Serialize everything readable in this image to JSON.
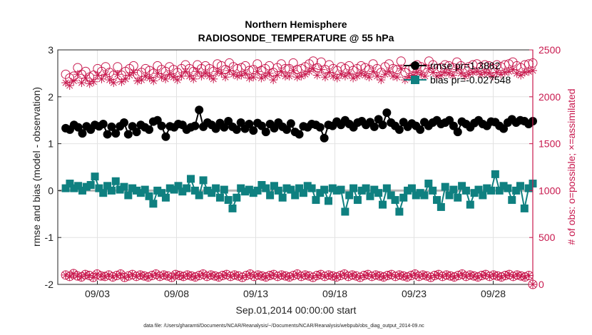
{
  "chart_data": {
    "type": "line",
    "title": "Northern Hemisphere",
    "subtitle": "RADIOSONDE_TEMPERATURE @ 55 hPa",
    "xlabel": "Sep.01,2014 00:00:00 start",
    "ylabel_left": "rmse and bias (model - observation)",
    "ylabel_right": "# of obs: o=possible; ×=assimilated",
    "footnote": "data file: /Users/gharamti/Documents/NCAR/Reanalysis/~/Documents/NCAR/Reanalysis/webpub/obs_diag_output_2014-09.nc",
    "x_range": [
      0.5,
      30.5
    ],
    "ylim_left": [
      -2,
      3
    ],
    "ylim_right": [
      0,
      2500
    ],
    "grid": true,
    "legend_position": "top-right",
    "x_ticks": [
      {
        "value": 3,
        "label": "09/03"
      },
      {
        "value": 8,
        "label": "09/08"
      },
      {
        "value": 13,
        "label": "09/13"
      },
      {
        "value": 18,
        "label": "09/18"
      },
      {
        "value": 23,
        "label": "09/23"
      },
      {
        "value": 28,
        "label": "09/28"
      }
    ],
    "y_ticks_left": [
      {
        "value": -2,
        "label": "-2"
      },
      {
        "value": -1,
        "label": "-1"
      },
      {
        "value": 0,
        "label": "0"
      },
      {
        "value": 1,
        "label": "1"
      },
      {
        "value": 2,
        "label": "2"
      },
      {
        "value": 3,
        "label": "3"
      }
    ],
    "y_ticks_right": [
      {
        "value": 0,
        "label": "0"
      },
      {
        "value": 500,
        "label": "500"
      },
      {
        "value": 1000,
        "label": "1000"
      },
      {
        "value": 1500,
        "label": "1500"
      },
      {
        "value": 2000,
        "label": "2000"
      },
      {
        "value": 2500,
        "label": "2500"
      }
    ],
    "colors": {
      "rmse": "#000000",
      "bias": "#0f8080",
      "obs": "#c8194e",
      "zero_line": "#b4b4b4",
      "grid": "#e2e2e2"
    },
    "series": [
      {
        "name": "rmse pr=1.3882",
        "axis": "left",
        "values": [
          1.33,
          1.3,
          1.4,
          1.35,
          1.22,
          1.37,
          1.3,
          1.4,
          1.37,
          1.42,
          1.2,
          1.36,
          1.22,
          1.37,
          1.45,
          1.2,
          1.37,
          1.25,
          1.4,
          1.35,
          1.3,
          1.47,
          1.5,
          1.38,
          1.15,
          1.37,
          1.35,
          1.42,
          1.4,
          1.3,
          1.35,
          1.38,
          1.72,
          1.36,
          1.45,
          1.4,
          1.32,
          1.44,
          1.35,
          1.48,
          1.36,
          1.3,
          1.45,
          1.32,
          1.42,
          1.28,
          1.44,
          1.38,
          1.25,
          1.42,
          1.33,
          1.45,
          1.36,
          1.3,
          1.43,
          1.25,
          1.2,
          1.37,
          1.35,
          1.42,
          1.4,
          1.35,
          1.12,
          1.4,
          1.38,
          1.47,
          1.4,
          1.5,
          1.42,
          1.35,
          1.45,
          1.48,
          1.4,
          1.46,
          1.36,
          1.52,
          1.4,
          1.66,
          1.45,
          1.38,
          1.3,
          1.46,
          1.36,
          1.43,
          1.38,
          1.3,
          1.46,
          1.38,
          1.45,
          1.5,
          1.42,
          1.45,
          1.5,
          1.38,
          1.25,
          1.47,
          1.42,
          1.35,
          1.44,
          1.5,
          1.42,
          1.38,
          1.47,
          1.46,
          1.38,
          1.32,
          1.45,
          1.52,
          1.45,
          1.5,
          1.48,
          1.42,
          1.48
        ]
      },
      {
        "name": "bias pr=-0.027548",
        "axis": "left",
        "values": [
          0.05,
          0.15,
          0.05,
          0.1,
          0.0,
          0.08,
          0.12,
          0.3,
          0.05,
          -0.05,
          0.1,
          0.0,
          0.2,
          0.02,
          0.08,
          -0.1,
          0.05,
          0.0,
          -0.05,
          0.02,
          -0.12,
          -0.28,
          0.0,
          -0.05,
          -0.15,
          0.05,
          0.02,
          0.1,
          -0.02,
          0.05,
          0.25,
          0.0,
          -0.1,
          0.22,
          0.0,
          -0.05,
          0.05,
          -0.15,
          0.02,
          -0.2,
          -0.38,
          -0.15,
          0.05,
          -0.02,
          0.02,
          -0.05,
          0.0,
          0.12,
          0.05,
          -0.1,
          0.1,
          0.0,
          -0.15,
          0.05,
          0.02,
          -0.1,
          0.05,
          -0.05,
          0.1,
          0.05,
          -0.2,
          -0.05,
          0.02,
          -0.22,
          0.05,
          0.0,
          0.02,
          -0.45,
          -0.1,
          0.05,
          -0.2,
          0.0,
          0.05,
          -0.12,
          0.02,
          -0.05,
          -0.3,
          0.05,
          -0.1,
          -0.2,
          -0.45,
          -0.15,
          0.0,
          0.05,
          -0.1,
          -0.05,
          -0.1,
          0.15,
          0.0,
          -0.2,
          -0.35,
          0.08,
          -0.1,
          0.02,
          -0.15,
          0.1,
          0.0,
          -0.3,
          -0.05,
          0.02,
          -0.1,
          0.05,
          0.0,
          0.35,
          0.0,
          0.1,
          0.05,
          -0.2,
          0.0,
          0.1,
          -0.38,
          0.05,
          0.15
        ]
      },
      {
        "name": "possible",
        "axis": "right",
        "values": [
          2240,
          2200,
          2220,
          2310,
          2240,
          2270,
          2210,
          2230,
          2300,
          2270,
          2320,
          2260,
          2230,
          2320,
          2230,
          2270,
          2300,
          2330,
          2240,
          2260,
          2300,
          2280,
          2250,
          2330,
          2290,
          2270,
          2320,
          2290,
          2260,
          2300,
          2340,
          2300,
          2270,
          2340,
          2300,
          2330,
          2300,
          2270,
          2350,
          2330,
          2290,
          2360,
          2320,
          2300,
          2310,
          2330,
          2280,
          2290,
          2350,
          2280,
          2300,
          2330,
          2260,
          2310,
          2350,
          2300,
          2300,
          2360,
          2290,
          2300,
          2320,
          2350,
          2380,
          2310,
          2370,
          2290,
          2340,
          2300,
          2280,
          2320,
          2300,
          2330,
          2280,
          2300,
          2330,
          2310,
          2290,
          2350,
          2300,
          2260,
          2320,
          2350,
          2300,
          2290,
          2380,
          2260,
          2290,
          2310,
          2340,
          2320,
          2300,
          2380,
          2340,
          2300,
          2310,
          2340,
          2330,
          2310,
          2370,
          2330,
          2300,
          2320,
          2340,
          2350,
          2320,
          2340,
          2330,
          2300,
          2340,
          2320,
          2340,
          2350,
          2370,
          2330,
          2310,
          2340,
          2350,
          2360
        ]
      },
      {
        "name": "assimilated",
        "axis": "right",
        "values": [
          2150,
          2120,
          2170,
          2240,
          2150,
          2200,
          2140,
          2160,
          2230,
          2190,
          2240,
          2180,
          2150,
          2240,
          2160,
          2190,
          2230,
          2260,
          2170,
          2180,
          2220,
          2200,
          2170,
          2250,
          2210,
          2190,
          2240,
          2210,
          2180,
          2220,
          2270,
          2220,
          2190,
          2270,
          2220,
          2250,
          2220,
          2190,
          2270,
          2250,
          2210,
          2280,
          2240,
          2220,
          2230,
          2250,
          2200,
          2210,
          2270,
          2200,
          2220,
          2250,
          2180,
          2230,
          2270,
          2220,
          2220,
          2280,
          2210,
          2220,
          2240,
          2270,
          2300,
          2230,
          2290,
          2210,
          2260,
          2220,
          2200,
          2240,
          2220,
          2250,
          2200,
          2220,
          2250,
          2230,
          2210,
          2270,
          2220,
          2180,
          2240,
          2270,
          2220,
          2210,
          2300,
          2180,
          2210,
          2230,
          2260,
          2240,
          2220,
          2300,
          2260,
          2220,
          2230,
          2260,
          2250,
          2230,
          2290,
          2250,
          2220,
          2240,
          2260,
          2270,
          2240,
          2260,
          2250,
          2220,
          2260,
          2240,
          2260,
          2270,
          2290,
          2250,
          2230,
          2260,
          2270,
          2280
        ]
      },
      {
        "name": "possible-low",
        "axis": "right",
        "values": [
          100,
          85,
          115,
          90,
          80,
          105,
          95,
          75,
          110,
          90,
          85,
          100,
          80,
          95,
          110,
          75,
          90,
          105,
          85,
          100,
          90,
          80,
          95,
          110,
          85,
          100,
          90,
          75,
          105,
          95,
          85,
          100,
          90,
          80,
          95,
          110,
          85,
          100,
          90,
          80,
          95,
          105,
          85,
          100,
          90,
          75,
          95,
          110,
          85,
          100,
          90,
          80,
          95,
          105,
          85,
          100,
          90,
          80,
          95,
          110,
          85,
          100,
          90,
          75,
          95,
          105,
          85,
          100,
          90,
          80,
          95,
          110,
          85,
          100,
          90,
          75,
          95,
          105,
          85,
          100,
          90,
          80,
          95,
          105,
          85,
          100,
          90,
          80,
          95,
          110,
          85,
          100,
          90,
          75,
          95,
          105,
          85,
          100,
          90,
          80,
          95,
          110,
          85,
          100,
          90,
          80,
          95,
          105,
          85,
          100,
          90,
          80,
          95,
          105,
          85,
          100,
          90,
          80,
          95,
          0
        ]
      },
      {
        "name": "assimilated-low",
        "axis": "right",
        "values": [
          100,
          85,
          115,
          90,
          80,
          105,
          95,
          75,
          110,
          90,
          85,
          100,
          80,
          95,
          110,
          75,
          90,
          105,
          85,
          100,
          90,
          80,
          95,
          110,
          85,
          100,
          90,
          75,
          105,
          95,
          85,
          100,
          90,
          80,
          95,
          110,
          85,
          100,
          90,
          80,
          95,
          105,
          85,
          100,
          90,
          75,
          95,
          110,
          85,
          100,
          90,
          80,
          95,
          105,
          85,
          100,
          90,
          80,
          95,
          110,
          85,
          100,
          90,
          75,
          95,
          105,
          85,
          100,
          90,
          80,
          95,
          110,
          85,
          100,
          90,
          75,
          95,
          105,
          85,
          100,
          90,
          80,
          95,
          105,
          85,
          100,
          90,
          80,
          95,
          110,
          85,
          100,
          90,
          75,
          95,
          105,
          85,
          100,
          90,
          80,
          95,
          110,
          85,
          100,
          90,
          80,
          95,
          105,
          85,
          100,
          90,
          80,
          95,
          105,
          85,
          100,
          90,
          80,
          95,
          0
        ]
      }
    ],
    "legend": [
      {
        "name": "rmse pr=1.3882",
        "series": "rmse"
      },
      {
        "name": "bias pr=-0.027548",
        "series": "bias"
      }
    ]
  }
}
